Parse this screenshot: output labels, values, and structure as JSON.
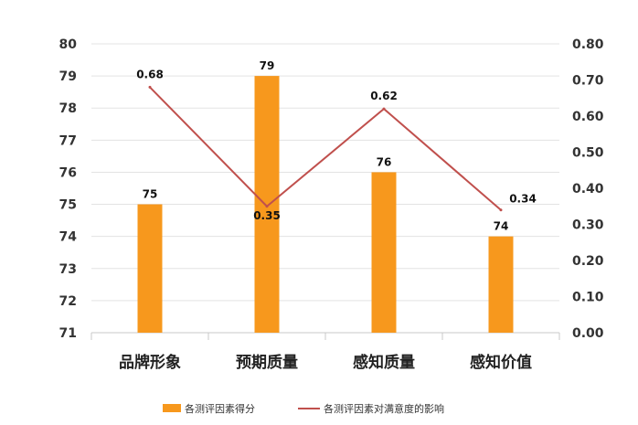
{
  "chart_data": {
    "type": "bar",
    "categories": [
      "品牌形象",
      "预期质量",
      "感知质量",
      "感知价值"
    ],
    "series": [
      {
        "name": "各测评因素得分",
        "type": "bar",
        "axis": "left",
        "color": "#F7981D",
        "values": [
          75,
          79,
          76,
          74
        ],
        "labels": [
          "75",
          "79",
          "76",
          "74"
        ]
      },
      {
        "name": "各测评因素对满意度的影响",
        "type": "line",
        "axis": "right",
        "color": "#C0504D",
        "values": [
          0.68,
          0.35,
          0.62,
          0.34
        ],
        "labels": [
          "0.68",
          "0.35",
          "0.62",
          "0.34"
        ]
      }
    ],
    "y_left": {
      "min": 71,
      "max": 80,
      "ticks": [
        "71",
        "72",
        "73",
        "74",
        "75",
        "76",
        "77",
        "78",
        "79",
        "80"
      ]
    },
    "y_right": {
      "min": 0,
      "max": 0.8,
      "ticks": [
        "0.00",
        "0.10",
        "0.20",
        "0.30",
        "0.40",
        "0.50",
        "0.60",
        "0.70",
        "0.80"
      ]
    },
    "grid": true,
    "legend_position": "bottom"
  }
}
